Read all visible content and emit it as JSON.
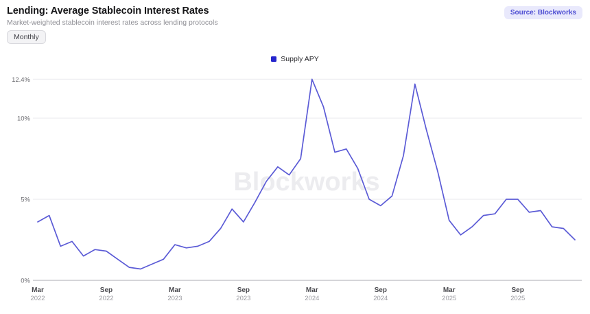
{
  "header": {
    "title": "Lending: Average Stablecoin Interest Rates",
    "subtitle": "Market-weighted stablecoin interest rates across lending protocols",
    "source_badge": "Source: Blockworks",
    "frequency_button": "Monthly"
  },
  "legend": {
    "label": "Supply APY",
    "marker_color": "#2525cd"
  },
  "watermark": "Blockworks",
  "colors": {
    "line": "#5b5bd6",
    "legend_marker": "#2525cd",
    "badge_bg": "#e9e9fc",
    "badge_text": "#4f4fd3",
    "grid": "#f0f0f3",
    "axis_line": "#d5d5d9",
    "tick_month": "#4a4a4f",
    "tick_year": "#9a9aa0",
    "y_label": "#6b6b70",
    "watermark": "#ececef"
  },
  "chart_data": {
    "type": "line",
    "title": "Lending: Average Stablecoin Interest Rates",
    "subtitle": "Market-weighted stablecoin interest rates across lending protocols",
    "frequency": "Monthly",
    "grid": "horizontal",
    "legend_position": "top-center",
    "ylim": [
      0,
      12.4
    ],
    "ylabel": "Supply APY (%)",
    "y_gridlines": [
      {
        "value": 12.4,
        "label": "12.4%"
      },
      {
        "value": 10,
        "label": "10%"
      },
      {
        "value": 5,
        "label": "5%"
      },
      {
        "value": 0,
        "label": "0%"
      }
    ],
    "x": [
      "Mar 2022",
      "Apr 2022",
      "May 2022",
      "Jun 2022",
      "Jul 2022",
      "Aug 2022",
      "Sep 2022",
      "Oct 2022",
      "Nov 2022",
      "Dec 2022",
      "Jan 2023",
      "Feb 2023",
      "Mar 2023",
      "Apr 2023",
      "May 2023",
      "Jun 2023",
      "Jul 2023",
      "Aug 2023",
      "Sep 2023",
      "Oct 2023",
      "Nov 2023",
      "Dec 2023",
      "Jan 2024",
      "Feb 2024",
      "Mar 2024",
      "Apr 2024",
      "May 2024",
      "Jun 2024",
      "Jul 2024",
      "Aug 2024",
      "Sep 2024",
      "Oct 2024",
      "Nov 2024",
      "Dec 2024",
      "Jan 2025",
      "Feb 2025",
      "Mar 2025",
      "Apr 2025",
      "May 2025",
      "Jun 2025",
      "Jul 2025",
      "Aug 2025",
      "Sep 2025",
      "Oct 2025",
      "Nov 2025",
      "Dec 2025",
      "Jan 2026",
      "Feb 2026"
    ],
    "series": [
      {
        "name": "Supply APY",
        "values": [
          3.6,
          4.0,
          2.1,
          2.4,
          1.5,
          1.9,
          1.8,
          1.3,
          0.8,
          0.7,
          1.0,
          1.3,
          2.2,
          2.0,
          2.1,
          2.4,
          3.2,
          4.4,
          3.6,
          4.8,
          6.1,
          7.0,
          6.5,
          7.5,
          12.4,
          10.7,
          7.9,
          8.1,
          6.9,
          5.0,
          4.6,
          5.2,
          7.7,
          12.1,
          9.3,
          6.7,
          3.7,
          2.8,
          3.3,
          4.0,
          4.1,
          5.0,
          5.0,
          4.2,
          4.3,
          3.3,
          3.2,
          2.5
        ]
      }
    ],
    "x_ticks": [
      {
        "index": 0,
        "month": "Mar",
        "year": "2022"
      },
      {
        "index": 6,
        "month": "Sep",
        "year": "2022"
      },
      {
        "index": 12,
        "month": "Mar",
        "year": "2023"
      },
      {
        "index": 18,
        "month": "Sep",
        "year": "2023"
      },
      {
        "index": 24,
        "month": "Mar",
        "year": "2024"
      },
      {
        "index": 30,
        "month": "Sep",
        "year": "2024"
      },
      {
        "index": 36,
        "month": "Mar",
        "year": "2025"
      },
      {
        "index": 42,
        "month": "Sep",
        "year": "2025"
      }
    ]
  }
}
